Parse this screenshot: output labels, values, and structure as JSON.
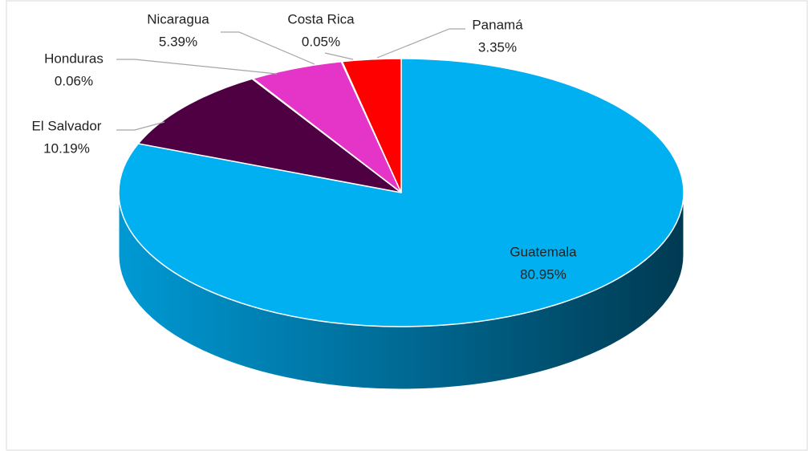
{
  "chart_data": {
    "type": "pie",
    "labels": [
      "Guatemala",
      "El Salvador",
      "Honduras",
      "Nicaragua",
      "Costa Rica",
      "Panamá"
    ],
    "values": [
      80.95,
      10.19,
      0.06,
      5.39,
      0.05,
      3.35
    ],
    "value_labels": [
      "80.95%",
      "10.19%",
      "0.06%",
      "5.39%",
      "0.05%",
      "3.35%"
    ],
    "colors": [
      "#00b0f0",
      "#4f0042",
      "#7a1f5c",
      "#e535c8",
      "#b0309a",
      "#ff0000"
    ]
  }
}
